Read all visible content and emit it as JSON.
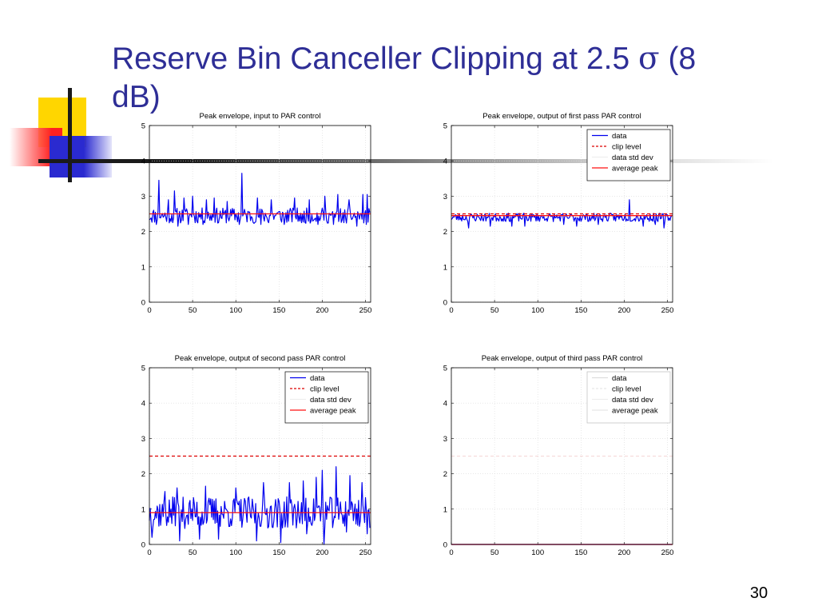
{
  "slide": {
    "title_pre": "Reserve Bin Canceller Clipping at 2.5 ",
    "title_sigma": "σ",
    "title_post": " (8 dB)",
    "page_number": "30"
  },
  "colors": {
    "title": "#2e2e96",
    "data": "#0000ee",
    "clip": "#dd0000",
    "std": "#f2c8c8",
    "avg": "#ff1010"
  },
  "chart_data": [
    {
      "type": "line",
      "title": "Peak envelope, input to PAR control",
      "xlim": [
        0,
        256
      ],
      "ylim": [
        0,
        5
      ],
      "xticks": [
        "0",
        "50",
        "100",
        "150",
        "200",
        "250"
      ],
      "yticks": [
        "0",
        "1",
        "2",
        "3",
        "4",
        "5"
      ],
      "grid": true,
      "legend": null,
      "series": [
        {
          "key": "data",
          "spikes": [
            [
              11,
              3.45
            ],
            [
              22,
              2.9
            ],
            [
              29,
              3.15
            ],
            [
              40,
              2.95
            ],
            [
              50,
              3.0
            ],
            [
              66,
              2.9
            ],
            [
              75,
              2.95
            ],
            [
              90,
              2.85
            ],
            [
              107,
              3.65
            ],
            [
              125,
              2.95
            ],
            [
              141,
              2.9
            ],
            [
              168,
              2.95
            ],
            [
              185,
              2.9
            ],
            [
              203,
              3.0
            ],
            [
              218,
              3.05
            ],
            [
              231,
              2.9
            ],
            [
              247,
              3.05
            ],
            [
              252,
              3.05
            ]
          ],
          "dips": [
            [
              8,
              2.2
            ],
            [
              33,
              2.15
            ],
            [
              45,
              2.2
            ],
            [
              62,
              2.2
            ],
            [
              80,
              2.25
            ],
            [
              104,
              2.2
            ],
            [
              129,
              2.2
            ],
            [
              138,
              2.25
            ],
            [
              156,
              2.2
            ],
            [
              176,
              2.25
            ],
            [
              195,
              2.2
            ],
            [
              213,
              2.2
            ],
            [
              225,
              2.25
            ],
            [
              240,
              2.15
            ],
            [
              251,
              2.2
            ]
          ],
          "base": 2.45,
          "noise": 0.22,
          "seed": 11
        },
        {
          "key": "avg",
          "y": 2.5
        }
      ]
    },
    {
      "type": "line",
      "title": "Peak envelope, output of first pass PAR control",
      "xlim": [
        0,
        256
      ],
      "ylim": [
        0,
        5
      ],
      "xticks": [
        "0",
        "50",
        "100",
        "150",
        "200",
        "250"
      ],
      "yticks": [
        "0",
        "1",
        "2",
        "3",
        "4",
        "5"
      ],
      "grid": true,
      "legend": {
        "position": "top-right",
        "entries": [
          "data",
          "clip level",
          "data std dev",
          "average peak"
        ]
      },
      "series": [
        {
          "key": "data",
          "spikes": [
            [
              206,
              2.9
            ]
          ],
          "dips": [
            [
              20,
              2.1
            ],
            [
              45,
              2.15
            ],
            [
              70,
              2.15
            ],
            [
              85,
              2.15
            ],
            [
              130,
              2.2
            ],
            [
              145,
              2.15
            ],
            [
              170,
              2.2
            ],
            [
              222,
              2.15
            ],
            [
              236,
              2.2
            ],
            [
              246,
              2.1
            ]
          ],
          "base": 2.4,
          "noise": 0.12,
          "seed": 23
        },
        {
          "key": "clip",
          "y": 2.5
        },
        {
          "key": "avg",
          "y": 2.45
        }
      ]
    },
    {
      "type": "line",
      "title": "Peak envelope, output of second pass PAR control",
      "xlim": [
        0,
        256
      ],
      "ylim": [
        0,
        5
      ],
      "xticks": [
        "0",
        "50",
        "100",
        "150",
        "200",
        "250"
      ],
      "yticks": [
        "0",
        "1",
        "2",
        "3",
        "4",
        "5"
      ],
      "grid": true,
      "legend": {
        "position": "top-right",
        "entries": [
          "data",
          "clip level",
          "data std dev",
          "average peak"
        ]
      },
      "series": [
        {
          "key": "data",
          "spikes": [
            [
              18,
              1.5
            ],
            [
              32,
              1.6
            ],
            [
              65,
              1.65
            ],
            [
              100,
              1.6
            ],
            [
              132,
              1.75
            ],
            [
              162,
              1.75
            ],
            [
              178,
              1.8
            ],
            [
              193,
              1.9
            ],
            [
              200,
              2.1
            ],
            [
              216,
              2.2
            ],
            [
              232,
              1.95
            ],
            [
              246,
              1.75
            ]
          ],
          "dips": [
            [
              3,
              0.2
            ],
            [
              35,
              0.1
            ],
            [
              58,
              0.15
            ],
            [
              80,
              0.15
            ],
            [
              124,
              0.1
            ],
            [
              152,
              0.05
            ],
            [
              182,
              0.3
            ],
            [
              202,
              0.0
            ],
            [
              228,
              0.35
            ],
            [
              252,
              0.3
            ]
          ],
          "base": 0.9,
          "noise": 0.45,
          "seed": 37
        },
        {
          "key": "clip",
          "y": 2.5
        },
        {
          "key": "avg",
          "y": 0.9
        }
      ]
    },
    {
      "type": "line",
      "title": "Peak envelope, output of third pass PAR control",
      "xlim": [
        0,
        256
      ],
      "ylim": [
        0,
        5
      ],
      "xticks": [
        "0",
        "50",
        "100",
        "150",
        "200",
        "250"
      ],
      "yticks": [
        "0",
        "1",
        "2",
        "3",
        "4",
        "5"
      ],
      "grid": true,
      "legend": {
        "position": "top-right",
        "entries": [
          "data",
          "clip level",
          "data std dev",
          "average peak"
        ],
        "faded": true
      },
      "series": [
        {
          "key": "data",
          "flat": 0
        },
        {
          "key": "clip",
          "y": 2.5,
          "faded": true
        },
        {
          "key": "avg",
          "y": 0
        }
      ]
    }
  ]
}
